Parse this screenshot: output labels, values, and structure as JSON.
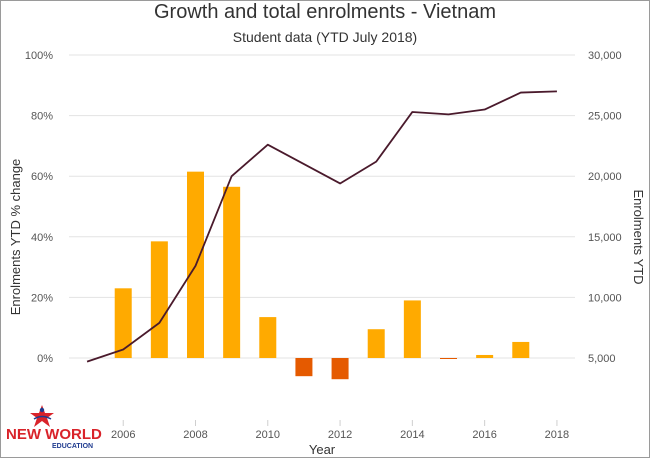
{
  "chart_data": {
    "type": "bar+line",
    "title": "Growth and total enrolments - Vietnam",
    "subtitle": "Student data (YTD July 2018)",
    "xlabel": "Year",
    "ylabel_left": "Enrolments YTD % change",
    "ylabel_right": "Enrolments YTD",
    "x_ticks": [
      "2006",
      "2008",
      "2010",
      "2012",
      "2014",
      "2016",
      "2018"
    ],
    "y_left_ticks": [
      "0%",
      "20%",
      "40%",
      "60%",
      "80%",
      "100%"
    ],
    "y_right_ticks": [
      "5,000",
      "10,000",
      "15,000",
      "20,000",
      "25,000",
      "30,000"
    ],
    "ylim_left": [
      0,
      100
    ],
    "ylim_right": [
      5000,
      30000
    ],
    "xlim": [
      2004.5,
      2018.5
    ],
    "grid": true,
    "series": [
      {
        "kind": "bar",
        "x": [
          2006,
          2007,
          2008,
          2009,
          2010,
          2011,
          2012,
          2013,
          2014,
          2015,
          2016,
          2017,
          2018
        ],
        "values": [
          23,
          38.5,
          61.5,
          56.5,
          13.5,
          -6,
          -7,
          9.5,
          19,
          -0.3,
          1,
          5.3,
          0
        ],
        "color_positive": "#FFAA00",
        "color_negative": "#E55A00"
      },
      {
        "kind": "line",
        "x": [
          2005,
          2006,
          2007,
          2008,
          2009,
          2010,
          2011,
          2012,
          2013,
          2014,
          2015,
          2016,
          2017,
          2018
        ],
        "values": [
          4700,
          5700,
          7900,
          12600,
          20000,
          22600,
          21000,
          19400,
          21200,
          25300,
          25100,
          25500,
          26900,
          27000
        ],
        "color": "#4a1a2c"
      }
    ]
  },
  "logo": {
    "text": "NEW WORLD",
    "sub": "EDUCATION",
    "colors": {
      "red": "#d9232a",
      "blue": "#1f3b8f"
    }
  }
}
